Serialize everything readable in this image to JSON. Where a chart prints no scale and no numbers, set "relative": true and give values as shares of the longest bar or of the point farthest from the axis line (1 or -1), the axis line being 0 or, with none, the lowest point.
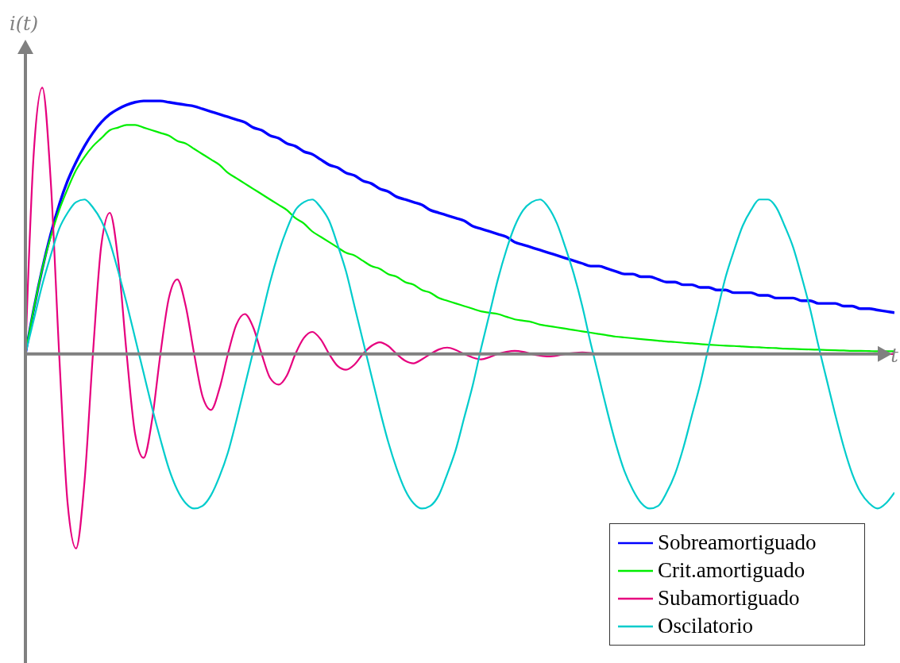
{
  "chart_data": {
    "type": "line",
    "relative": true,
    "xlabel": "t",
    "ylabel": "i(t)",
    "legend": "bottom right",
    "tick_labels": false,
    "categories": [
      null,
      null,
      null,
      null,
      null,
      null,
      null,
      null,
      null,
      null,
      null,
      null,
      null,
      null,
      null,
      null,
      null,
      null,
      null,
      null,
      null,
      null,
      null,
      null,
      null,
      null,
      null,
      null,
      null,
      null,
      null,
      null,
      null,
      null,
      null,
      null,
      null,
      null,
      null,
      null,
      null,
      null,
      null,
      null,
      null,
      null,
      null,
      null,
      null,
      null,
      null,
      null,
      null,
      null,
      null,
      null,
      null,
      null,
      null,
      null,
      null,
      null,
      null,
      null,
      null,
      null,
      null,
      null,
      null,
      null,
      null,
      null,
      null,
      null,
      null,
      null,
      null,
      null,
      null,
      null,
      null,
      null,
      null,
      null,
      null,
      null,
      null,
      null,
      null,
      null,
      null,
      null,
      null,
      null,
      null,
      null,
      null,
      null,
      null,
      null,
      null,
      null,
      null,
      null
    ],
    "series": [
      {
        "name": "Sobreamortiguado",
        "color": "#0000ff",
        "values": [
          0,
          0.17,
          0.32,
          0.45,
          0.56,
          0.65,
          0.72,
          0.78,
          0.83,
          0.87,
          0.9,
          0.92,
          0.935,
          0.945,
          0.95,
          0.95,
          0.95,
          0.945,
          0.94,
          0.935,
          0.93,
          0.92,
          0.91,
          0.9,
          0.89,
          0.88,
          0.87,
          0.85,
          0.84,
          0.82,
          0.81,
          0.79,
          0.78,
          0.76,
          0.75,
          0.73,
          0.71,
          0.7,
          0.68,
          0.67,
          0.65,
          0.64,
          0.62,
          0.61,
          0.59,
          0.58,
          0.57,
          0.56,
          0.54,
          0.53,
          0.52,
          0.51,
          0.5,
          0.48,
          0.47,
          0.46,
          0.45,
          0.44,
          0.42,
          0.41,
          0.4,
          0.39,
          0.38,
          0.37,
          0.36,
          0.35,
          0.34,
          0.33,
          0.33,
          0.32,
          0.31,
          0.3,
          0.3,
          0.29,
          0.29,
          0.28,
          0.27,
          0.27,
          0.26,
          0.26,
          0.25,
          0.25,
          0.24,
          0.24,
          0.23,
          0.23,
          0.23,
          0.22,
          0.22,
          0.21,
          0.21,
          0.21,
          0.2,
          0.2,
          0.19,
          0.19,
          0.19,
          0.18,
          0.18,
          0.17,
          0.17,
          0.165,
          0.16,
          0.155
        ]
      },
      {
        "name": "Crit.amortiguado",
        "color": "#00ee00",
        "values": [
          0,
          0.17,
          0.32,
          0.44,
          0.54,
          0.62,
          0.69,
          0.74,
          0.78,
          0.81,
          0.84,
          0.85,
          0.86,
          0.86,
          0.85,
          0.84,
          0.83,
          0.82,
          0.8,
          0.79,
          0.77,
          0.75,
          0.73,
          0.71,
          0.68,
          0.66,
          0.64,
          0.62,
          0.6,
          0.58,
          0.56,
          0.54,
          0.51,
          0.49,
          0.46,
          0.44,
          0.42,
          0.4,
          0.38,
          0.37,
          0.35,
          0.33,
          0.32,
          0.3,
          0.29,
          0.27,
          0.26,
          0.24,
          0.23,
          0.21,
          0.2,
          0.19,
          0.18,
          0.17,
          0.16,
          0.155,
          0.15,
          0.14,
          0.13,
          0.125,
          0.12,
          0.11,
          0.105,
          0.1,
          0.095,
          0.09,
          0.085,
          0.08,
          0.075,
          0.07,
          0.065,
          0.062,
          0.059,
          0.056,
          0.053,
          0.05,
          0.047,
          0.045,
          0.042,
          0.04,
          0.037,
          0.035,
          0.033,
          0.031,
          0.03,
          0.028,
          0.026,
          0.025,
          0.023,
          0.022,
          0.02,
          0.019,
          0.018,
          0.017,
          0.016,
          0.015,
          0.014,
          0.013,
          0.012,
          0.012,
          0.011,
          0.01,
          0.01,
          0.01
        ]
      },
      {
        "name": "Subamortiguado",
        "color": "#e6007e",
        "values": [
          0,
          0.76,
          1.0,
          0.65,
          0,
          -0.56,
          -0.73,
          -0.48,
          0,
          0.41,
          0.53,
          0.35,
          0,
          -0.3,
          -0.39,
          -0.25,
          0,
          0.21,
          0.28,
          0.18,
          0,
          -0.16,
          -0.21,
          -0.13,
          0,
          0.11,
          0.15,
          0.1,
          0,
          -0.09,
          -0.115,
          -0.08,
          0,
          0.06,
          0.083,
          0.055,
          0,
          -0.045,
          -0.059,
          -0.04,
          0,
          0.03,
          0.044,
          0.03,
          0,
          -0.025,
          -0.035,
          -0.02,
          0,
          0.017,
          0.024,
          0.015,
          0,
          -0.013,
          -0.02,
          -0.012,
          0,
          0.008,
          0.012,
          0.008,
          0,
          -0.006,
          -0.009,
          -0.006,
          0,
          0.004,
          0.006,
          0.004,
          0,
          0,
          0,
          0,
          0,
          0,
          0,
          0,
          0,
          0,
          0,
          0,
          0,
          0,
          0,
          0,
          0,
          0,
          0,
          0,
          0,
          0,
          0,
          0,
          0,
          0,
          0,
          0,
          0,
          0,
          0,
          0,
          0,
          0,
          0,
          0
        ]
      },
      {
        "name": "Oscilatorio",
        "color": "#00cccc",
        "values": [
          0,
          0.13,
          0.26,
          0.37,
          0.47,
          0.53,
          0.57,
          0.58,
          0.55,
          0.5,
          0.42,
          0.31,
          0.19,
          0.06,
          -0.07,
          -0.2,
          -0.32,
          -0.43,
          -0.51,
          -0.56,
          -0.58,
          -0.57,
          -0.53,
          -0.46,
          -0.37,
          -0.25,
          -0.12,
          0.01,
          0.14,
          0.27,
          0.38,
          0.47,
          0.54,
          0.57,
          0.58,
          0.55,
          0.5,
          0.41,
          0.31,
          0.18,
          0.05,
          -0.08,
          -0.21,
          -0.33,
          -0.43,
          -0.51,
          -0.56,
          -0.58,
          -0.57,
          -0.53,
          -0.45,
          -0.36,
          -0.24,
          -0.12,
          0.02,
          0.15,
          0.28,
          0.39,
          0.48,
          0.54,
          0.57,
          0.58,
          0.55,
          0.49,
          0.4,
          0.3,
          0.18,
          0.04,
          -0.09,
          -0.22,
          -0.34,
          -0.44,
          -0.51,
          -0.56,
          -0.58,
          -0.57,
          -0.52,
          -0.45,
          -0.35,
          -0.23,
          -0.11,
          0.03,
          0.16,
          0.29,
          0.39,
          0.48,
          0.54,
          0.58,
          0.58,
          0.55,
          0.48,
          0.4,
          0.29,
          0.17,
          0.03,
          -0.1,
          -0.23,
          -0.35,
          -0.45,
          -0.52,
          -0.56,
          -0.58,
          -0.56,
          -0.52
        ]
      }
    ]
  }
}
